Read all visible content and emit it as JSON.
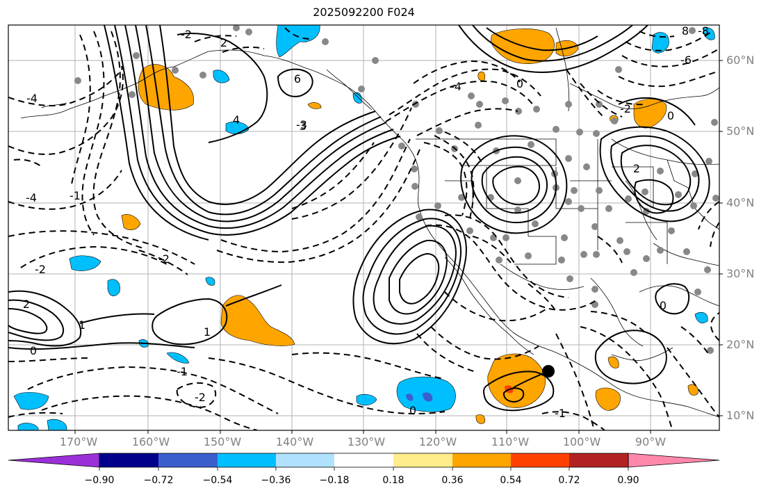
{
  "title": "2025092200 F024",
  "lat_labels": [
    "60°N",
    "50°N",
    "40°N",
    "30°N",
    "20°N",
    "10°N"
  ],
  "lon_labels": [
    "170°W",
    "160°W",
    "150°W",
    "140°W",
    "130°W",
    "120°W",
    "110°W",
    "100°W",
    "90°W"
  ],
  "colorbar": {
    "colors": [
      "#9b30d9",
      "#00008b",
      "#3a5fcd",
      "#00bfff",
      "#b0e2ff",
      "#ffffff",
      "#ffec8b",
      "#ffa500",
      "#ff4000",
      "#b22222",
      "#ff88aa"
    ],
    "tick_labels": [
      "−0.90",
      "−0.72",
      "−0.54",
      "−0.36",
      "−0.18",
      "0.18",
      "0.36",
      "0.54",
      "0.72",
      "0.90"
    ]
  },
  "contour_labels": [
    "-2",
    "2",
    "-3",
    "-4",
    "4",
    "-6",
    "6",
    "-8",
    "8",
    "0",
    "-1",
    "1",
    "0",
    "3",
    "-2",
    "2",
    "-4",
    "0",
    "-1",
    "1",
    "0",
    "-2",
    "2",
    "-4",
    "0",
    "-2",
    "-1",
    "-2"
  ],
  "shading_colors": {
    "positive": "#ffa500",
    "negative": "#00bfff",
    "strong_negative": "#3a5fcd",
    "strong_positive": "#ff4000"
  },
  "station_color": "#888888",
  "contour_color": "#000000"
}
